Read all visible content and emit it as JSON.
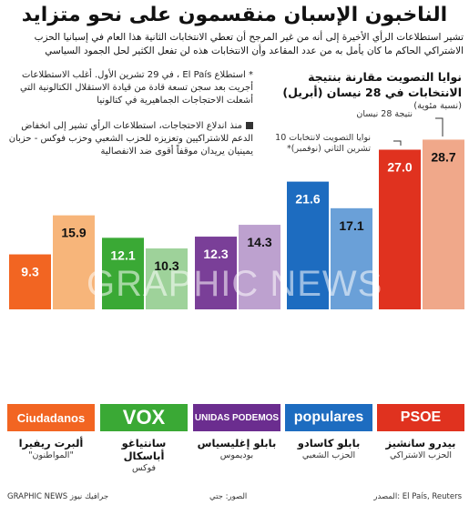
{
  "title": "الناخبون الإسبان منقسمون على نحو متزايد",
  "subtitle": "تشير استطلاعات الرأي الأخيرة إلى أنه من غير المرجح أن تعطي الانتخابات الثانية هذا العام في إسبانيا الحزب الاشتراكي الحاكم ما كان يأمل به من عدد المقاعد وأن الانتخابات هذه لن تفعل الكثير لحل الجمود السياسي",
  "note1": "* استطلاع El País ، في 29 تشرين الأول. أغلب الاستطلاعات أجريت بعد سجن تسعة قادة من قيادة الاستقلال الكتالونية التي أشعلت الاحتجاجات الجماهيرية في كتالونيا",
  "note2": "منذ اندلاع الاحتجاجات، استطلاعات الرأي تشير إلى انخفاض الدعم للاشتراكيين وتعزيزه للحزب الشعبي وحزب فوكس - حزبان يمينيان يريدان موقفاً أقوى ضد الانفصالية",
  "right_box": {
    "title": "نوايا التصويت مقارنة بنتيجة الانتخابات في 28 نيسان (أبريل)",
    "unit": "(نسبة مئوية)",
    "callout_result": "نتيجة 28 نيسان",
    "callout_intention": "نوايا التصويت لانتخابات 10 تشرين الثاني (نوفمبر)*"
  },
  "chart_data": {
    "type": "bar",
    "series": [
      {
        "name": "نتيجة 28 نيسان",
        "values": [
          28.7,
          17.1,
          14.3,
          10.3,
          15.9
        ]
      },
      {
        "name": "نوايا التصويت لانتخابات 10 تشرين الثاني (نوفمبر)*",
        "values": [
          27.0,
          21.6,
          12.3,
          12.1,
          9.3
        ]
      }
    ],
    "categories": [
      "PSOE",
      "Populares",
      "Unidas Podemos",
      "VOX",
      "Ciudadanos"
    ],
    "ylim": [
      0,
      30
    ],
    "colors": {
      "PSOE": [
        "#f0a88a",
        "#e0321f"
      ],
      "Populares": [
        "#6aa0d8",
        "#1d6cc0"
      ],
      "Unidas Podemos": [
        "#bda1cf",
        "#7a3f98"
      ],
      "VOX": [
        "#9ed29a",
        "#3aa935"
      ],
      "Ciudadanos": [
        "#f7b57a",
        "#f26522"
      ]
    }
  },
  "parties": [
    {
      "logo": "PSOE",
      "name": "بيدرو سانشيز",
      "party": "الحزب الاشتراكي",
      "color": "#e0321f"
    },
    {
      "logo": "populares",
      "name": "بابلو كاسادو",
      "party": "الحزب الشعبي",
      "color": "#1d6cc0"
    },
    {
      "logo": "UNIDAS PODEMOS",
      "name": "بابلو إغليسياس",
      "party": "بوديموس",
      "color": "#6b2d8f"
    },
    {
      "logo": "VOX",
      "name": "سانتياغو أباسكال",
      "party": "فوكس",
      "color": "#3aa935"
    },
    {
      "logo": "Ciudadanos",
      "name": "ألبرت ريفيرا",
      "party": "\"المواطنون\"",
      "color": "#f26522"
    }
  ],
  "footer": {
    "source": "المصدر: El País, Reuters",
    "photos": "الصور: جتي",
    "credit": "GRAPHIC NEWS جرافيك نيوز"
  },
  "watermark": "GRAPHIC NEWS"
}
